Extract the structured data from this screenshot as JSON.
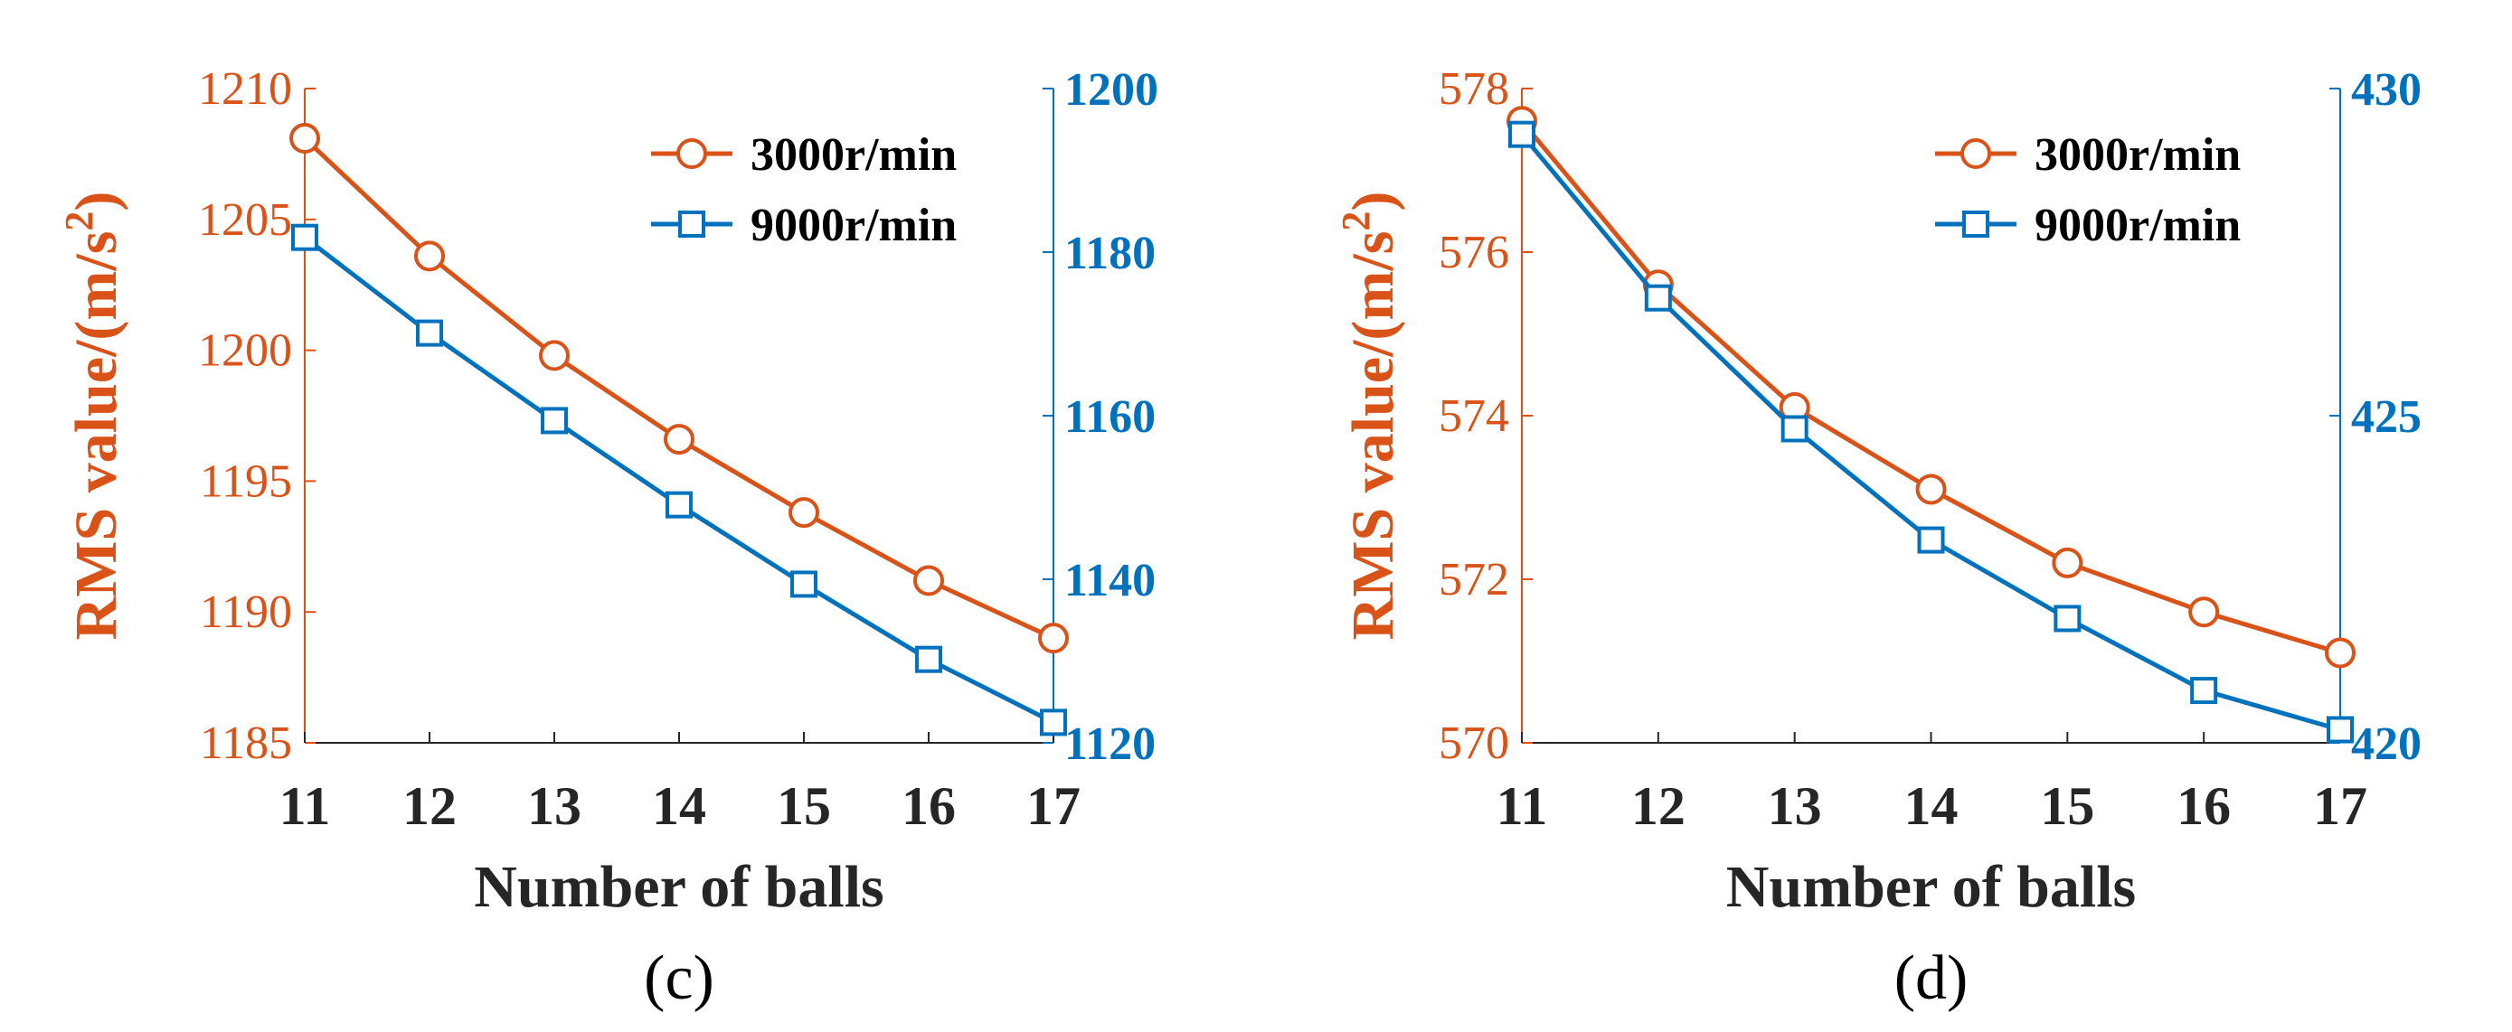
{
  "chart_data": [
    {
      "type": "line",
      "panel_label": "(c)",
      "xlabel": "Number of balls",
      "ylabel": "RMS value/(m/s",
      "ylabel_sup": "2",
      "ylabel_close": ")",
      "x": [
        11,
        12,
        13,
        14,
        15,
        16,
        17
      ],
      "x_ticks": [
        "11",
        "12",
        "13",
        "14",
        "15",
        "16",
        "17"
      ],
      "xlim": [
        11,
        17
      ],
      "left_axis": {
        "ylim": [
          1185,
          1210
        ],
        "ticks": [
          "1185",
          "1190",
          "1195",
          "1200",
          "1205",
          "1210"
        ],
        "tick_values": [
          1185,
          1190,
          1195,
          1200,
          1205,
          1210
        ]
      },
      "right_axis": {
        "ylim": [
          1120,
          1200
        ],
        "ticks": [
          "1120",
          "1140",
          "1160",
          "1180",
          "1200"
        ],
        "tick_values": [
          1120,
          1140,
          1160,
          1180,
          1200
        ]
      },
      "series": [
        {
          "name": "3000r/min",
          "axis": "left",
          "marker": "circle",
          "color": "#D95319",
          "values": [
            1208.1,
            1203.6,
            1199.8,
            1196.6,
            1193.8,
            1191.2,
            1189.0
          ]
        },
        {
          "name": "9000r/min",
          "axis": "right",
          "marker": "square",
          "color": "#0072BD",
          "values": [
            1181.8,
            1170.1,
            1159.4,
            1149.1,
            1139.4,
            1130.2,
            1122.5
          ]
        }
      ],
      "legend": "top-right"
    },
    {
      "type": "line",
      "panel_label": "(d)",
      "xlabel": "Number of balls",
      "ylabel": "RMS value/(m/s",
      "ylabel_sup": "2",
      "ylabel_close": ")",
      "x": [
        11,
        12,
        13,
        14,
        15,
        16,
        17
      ],
      "x_ticks": [
        "11",
        "12",
        "13",
        "14",
        "15",
        "16",
        "17"
      ],
      "xlim": [
        11,
        17
      ],
      "left_axis": {
        "ylim": [
          570,
          578
        ],
        "ticks": [
          "570",
          "572",
          "574",
          "576",
          "578"
        ],
        "tick_values": [
          570,
          572,
          574,
          576,
          578
        ]
      },
      "right_axis": {
        "ylim": [
          420,
          430
        ],
        "ticks": [
          "420",
          "425",
          "430"
        ],
        "tick_values": [
          420,
          425,
          430
        ]
      },
      "series": [
        {
          "name": "3000r/min",
          "axis": "left",
          "marker": "circle",
          "color": "#D95319",
          "values": [
            577.6,
            575.6,
            574.1,
            573.1,
            572.2,
            571.6,
            571.1
          ]
        },
        {
          "name": "9000r/min",
          "axis": "right",
          "marker": "square",
          "color": "#0072BD",
          "values": [
            429.3,
            426.8,
            424.8,
            423.1,
            421.9,
            420.8,
            420.2
          ]
        }
      ],
      "legend": "top-right"
    }
  ]
}
